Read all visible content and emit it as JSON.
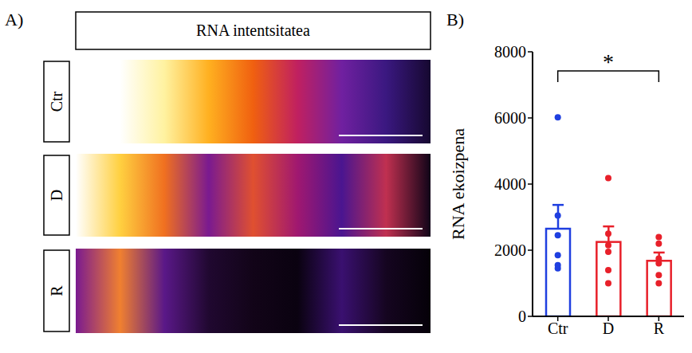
{
  "panel_a": {
    "panel_label": "A)",
    "title": "RNA intentsitatea",
    "rows": [
      "Ctr",
      "D",
      "R"
    ]
  },
  "chart_data": {
    "type": "bar",
    "panel_label": "B)",
    "categories": [
      "Ctr",
      "D",
      "R"
    ],
    "values": [
      2650,
      2250,
      1680
    ],
    "errors": [
      720,
      470,
      250
    ],
    "points": [
      [
        6020,
        3050,
        2450,
        1850,
        1550,
        1450
      ],
      [
        4180,
        2500,
        2150,
        1950,
        1400,
        1000
      ],
      [
        2400,
        2200,
        1750,
        1600,
        1250,
        1000
      ]
    ],
    "colors": [
      "#1f3fe0",
      "#e8202a",
      "#e8202a"
    ],
    "ylabel": "RNA ekoizpena",
    "ylim": [
      0,
      8000
    ],
    "yticks": [
      0,
      2000,
      4000,
      6000,
      8000
    ],
    "annotations": [
      {
        "text": "*",
        "from": "Ctr",
        "to": "R"
      }
    ],
    "grid": false
  }
}
